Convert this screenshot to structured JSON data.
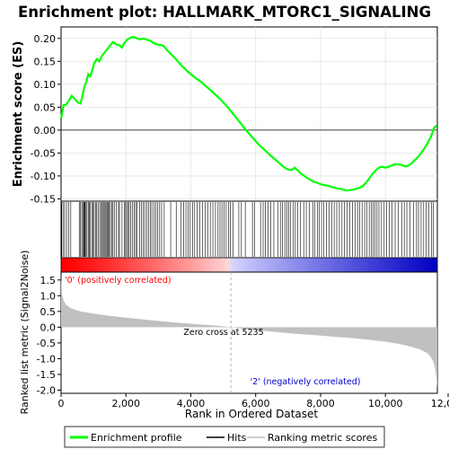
{
  "chart_data": {
    "type": "line",
    "title": "Enrichment plot: HALLMARK_MTORC1_SIGNALING",
    "es_panel": {
      "ylabel": "Enrichment score (ES)",
      "ylim": [
        -0.155,
        0.225
      ],
      "yticks": [
        -0.15,
        -0.1,
        -0.05,
        0.0,
        0.05,
        0.1,
        0.15,
        0.2
      ],
      "ytick_labels": [
        "-0.15",
        "-0.10",
        "-0.05",
        "0.00",
        "0.05",
        "0.10",
        "0.15",
        "0.20"
      ],
      "series": [
        {
          "name": "Enrichment profile",
          "color": "#00ff00",
          "x": [
            0,
            80,
            150,
            250,
            330,
            420,
            520,
            600,
            650,
            720,
            780,
            840,
            900,
            960,
            1020,
            1100,
            1180,
            1260,
            1350,
            1440,
            1520,
            1600,
            1700,
            1800,
            1880,
            1950,
            2050,
            2150,
            2250,
            2350,
            2450,
            2550,
            2650,
            2750,
            2850,
            2950,
            3050,
            3150,
            3300,
            3500,
            3700,
            3900,
            4100,
            4300,
            4500,
            4700,
            4900,
            5100,
            5300,
            5500,
            5700,
            5900,
            6100,
            6300,
            6500,
            6700,
            6800,
            6900,
            7000,
            7100,
            7200,
            7300,
            7400,
            7500,
            7600,
            7700,
            7800,
            7900,
            8000,
            8100,
            8200,
            8300,
            8400,
            8500,
            8600,
            8700,
            8800,
            8900,
            9000,
            9100,
            9200,
            9300,
            9400,
            9500,
            9600,
            9700,
            9800,
            9900,
            10000,
            10100,
            10200,
            10300,
            10400,
            10500,
            10600,
            10700,
            10800,
            10900,
            11000,
            11100,
            11200,
            11300,
            11400,
            11500,
            11580
          ],
          "values": [
            0.025,
            0.055,
            0.055,
            0.065,
            0.075,
            0.068,
            0.06,
            0.058,
            0.072,
            0.095,
            0.105,
            0.122,
            0.118,
            0.13,
            0.145,
            0.155,
            0.15,
            0.162,
            0.17,
            0.178,
            0.185,
            0.192,
            0.187,
            0.185,
            0.18,
            0.19,
            0.198,
            0.202,
            0.203,
            0.2,
            0.198,
            0.2,
            0.197,
            0.195,
            0.19,
            0.187,
            0.186,
            0.184,
            0.172,
            0.158,
            0.142,
            0.128,
            0.116,
            0.106,
            0.094,
            0.081,
            0.068,
            0.053,
            0.036,
            0.018,
            0.0,
            -0.016,
            -0.032,
            -0.045,
            -0.058,
            -0.07,
            -0.077,
            -0.082,
            -0.086,
            -0.087,
            -0.082,
            -0.088,
            -0.095,
            -0.1,
            -0.105,
            -0.109,
            -0.113,
            -0.115,
            -0.118,
            -0.12,
            -0.121,
            -0.123,
            -0.125,
            -0.127,
            -0.128,
            -0.13,
            -0.132,
            -0.131,
            -0.13,
            -0.128,
            -0.126,
            -0.122,
            -0.115,
            -0.106,
            -0.096,
            -0.088,
            -0.082,
            -0.08,
            -0.082,
            -0.08,
            -0.077,
            -0.074,
            -0.075,
            -0.076,
            -0.079,
            -0.078,
            -0.073,
            -0.066,
            -0.059,
            -0.05,
            -0.04,
            -0.028,
            -0.015,
            0.005,
            0.01
          ]
        }
      ]
    },
    "hits_panel": {
      "series_name": "Hits",
      "hit_positions": [
        20,
        60,
        110,
        170,
        240,
        300,
        560,
        600,
        640,
        670,
        700,
        720,
        740,
        770,
        800,
        840,
        870,
        900,
        950,
        990,
        1020,
        1060,
        1100,
        1140,
        1190,
        1230,
        1270,
        1300,
        1330,
        1360,
        1390,
        1420,
        1450,
        1480,
        1520,
        1560,
        1600,
        1640,
        1700,
        1770,
        1800,
        1880,
        1950,
        1990,
        2020,
        2060,
        2100,
        2150,
        2200,
        2250,
        2300,
        2340,
        2420,
        2480,
        2530,
        2580,
        2640,
        2700,
        2750,
        2800,
        2860,
        2920,
        2980,
        3040,
        3100,
        3180,
        3380,
        3550,
        3700,
        3780,
        3850,
        3920,
        3980,
        4050,
        4120,
        4200,
        4280,
        4360,
        4440,
        4520,
        4600,
        4680,
        4760,
        4840,
        4900,
        4960,
        5020,
        5090,
        5160,
        5220,
        5300,
        5480,
        5560,
        5680,
        5900,
        5960,
        6150,
        6230,
        6300,
        6380,
        6470,
        6560,
        6680,
        6760,
        6830,
        6900,
        6960,
        7020,
        7080,
        7150,
        7220,
        7300,
        7380,
        7480,
        7560,
        7660,
        7760,
        7820,
        7900,
        7960,
        8030,
        8100,
        8180,
        8260,
        8340,
        8420,
        8500,
        8580,
        8660,
        8740,
        8820,
        8900,
        8980,
        9060,
        9140,
        9200,
        9280,
        9360,
        9430,
        9500,
        9560,
        9620,
        9680,
        9740,
        9800,
        9880,
        9960,
        10040,
        10120,
        10200,
        10300,
        10400,
        10500,
        10580,
        10660,
        10760,
        10860,
        10960,
        11020,
        11100,
        11180,
        11260,
        11340,
        11420,
        11480
      ]
    },
    "ranking_panel": {
      "ylabel": "Ranked list metric (Signal2Noise)",
      "ylim": [
        -2.1,
        1.75
      ],
      "yticks": [
        -2.0,
        -1.5,
        -1.0,
        -0.5,
        0.0,
        0.5,
        1.0,
        1.5
      ],
      "ytick_labels": [
        "-2.0",
        "-1.5",
        "-1.0",
        "-0.5",
        "0.0",
        "0.5",
        "1.0",
        "1.5"
      ],
      "series": [
        {
          "name": "Ranking metric scores",
          "color": "#c0c0c0",
          "x": [
            0,
            30,
            80,
            150,
            300,
            600,
            1000,
            1500,
            2000,
            2500,
            3000,
            3500,
            4000,
            4500,
            5000,
            5235,
            5500,
            6000,
            6500,
            7000,
            7500,
            8000,
            8500,
            9000,
            9500,
            10000,
            10400,
            10800,
            11100,
            11300,
            11400,
            11480,
            11530,
            11570,
            11600
          ],
          "values": [
            1.6,
            1.05,
            0.85,
            0.72,
            0.6,
            0.5,
            0.43,
            0.36,
            0.3,
            0.25,
            0.2,
            0.15,
            0.11,
            0.07,
            0.03,
            0.0,
            -0.04,
            -0.09,
            -0.14,
            -0.19,
            -0.23,
            -0.27,
            -0.31,
            -0.35,
            -0.4,
            -0.46,
            -0.53,
            -0.62,
            -0.72,
            -0.83,
            -0.95,
            -1.1,
            -1.3,
            -1.6,
            -1.95
          ]
        }
      ],
      "annotations": {
        "positive": "'0' (positively correlated)",
        "zero_cross": "Zero cross at 5235",
        "negative": "'2' (negatively correlated)"
      },
      "zero_cross": 5235
    },
    "xaxis": {
      "xlabel": "Rank in Ordered Dataset",
      "xlim": [
        0,
        11600
      ],
      "xticks": [
        0,
        2000,
        4000,
        6000,
        8000,
        10000,
        12000
      ],
      "xtick_labels": [
        "0",
        "2,000",
        "4,000",
        "6,000",
        "8,000",
        "10,000",
        "12,000"
      ]
    },
    "legend": {
      "placement": "bottom",
      "items": [
        {
          "label": "Enrichment profile",
          "color": "#00ff00"
        },
        {
          "label": "Hits",
          "color": "#000000"
        },
        {
          "label": "Ranking metric scores",
          "color": "#c0c0c0"
        }
      ]
    }
  }
}
